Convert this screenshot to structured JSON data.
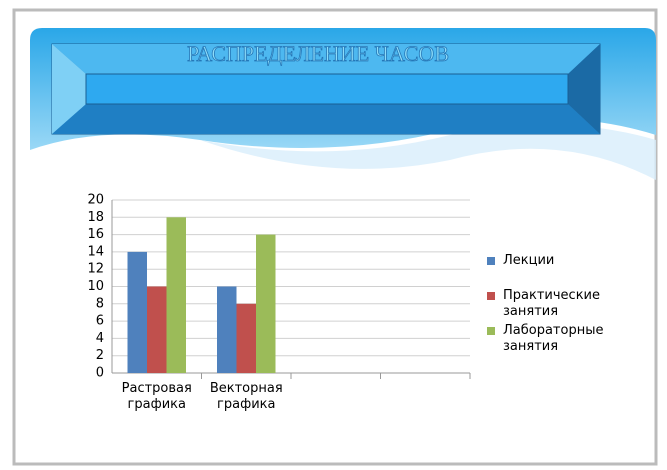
{
  "chart_data": {
    "type": "bar",
    "title": "РАСПРЕДЕЛЕНИЕ ЧАСОВ",
    "categories": [
      "Растровая графика",
      "Векторная графика",
      null,
      null
    ],
    "series": [
      {
        "name": "Лекции",
        "color": "#4f81bd",
        "values": [
          14,
          10,
          null,
          null
        ]
      },
      {
        "name": "Практические занятия",
        "color": "#c0504d",
        "values": [
          10,
          8,
          null,
          null
        ]
      },
      {
        "name": "Лабораторные занятия",
        "color": "#9bbb59",
        "values": [
          18,
          16,
          null,
          null
        ]
      }
    ],
    "ylim": [
      0,
      20
    ],
    "yticks": [
      0,
      2,
      4,
      6,
      8,
      10,
      12,
      14,
      16,
      18,
      20
    ],
    "grid": true,
    "legend": "right"
  }
}
